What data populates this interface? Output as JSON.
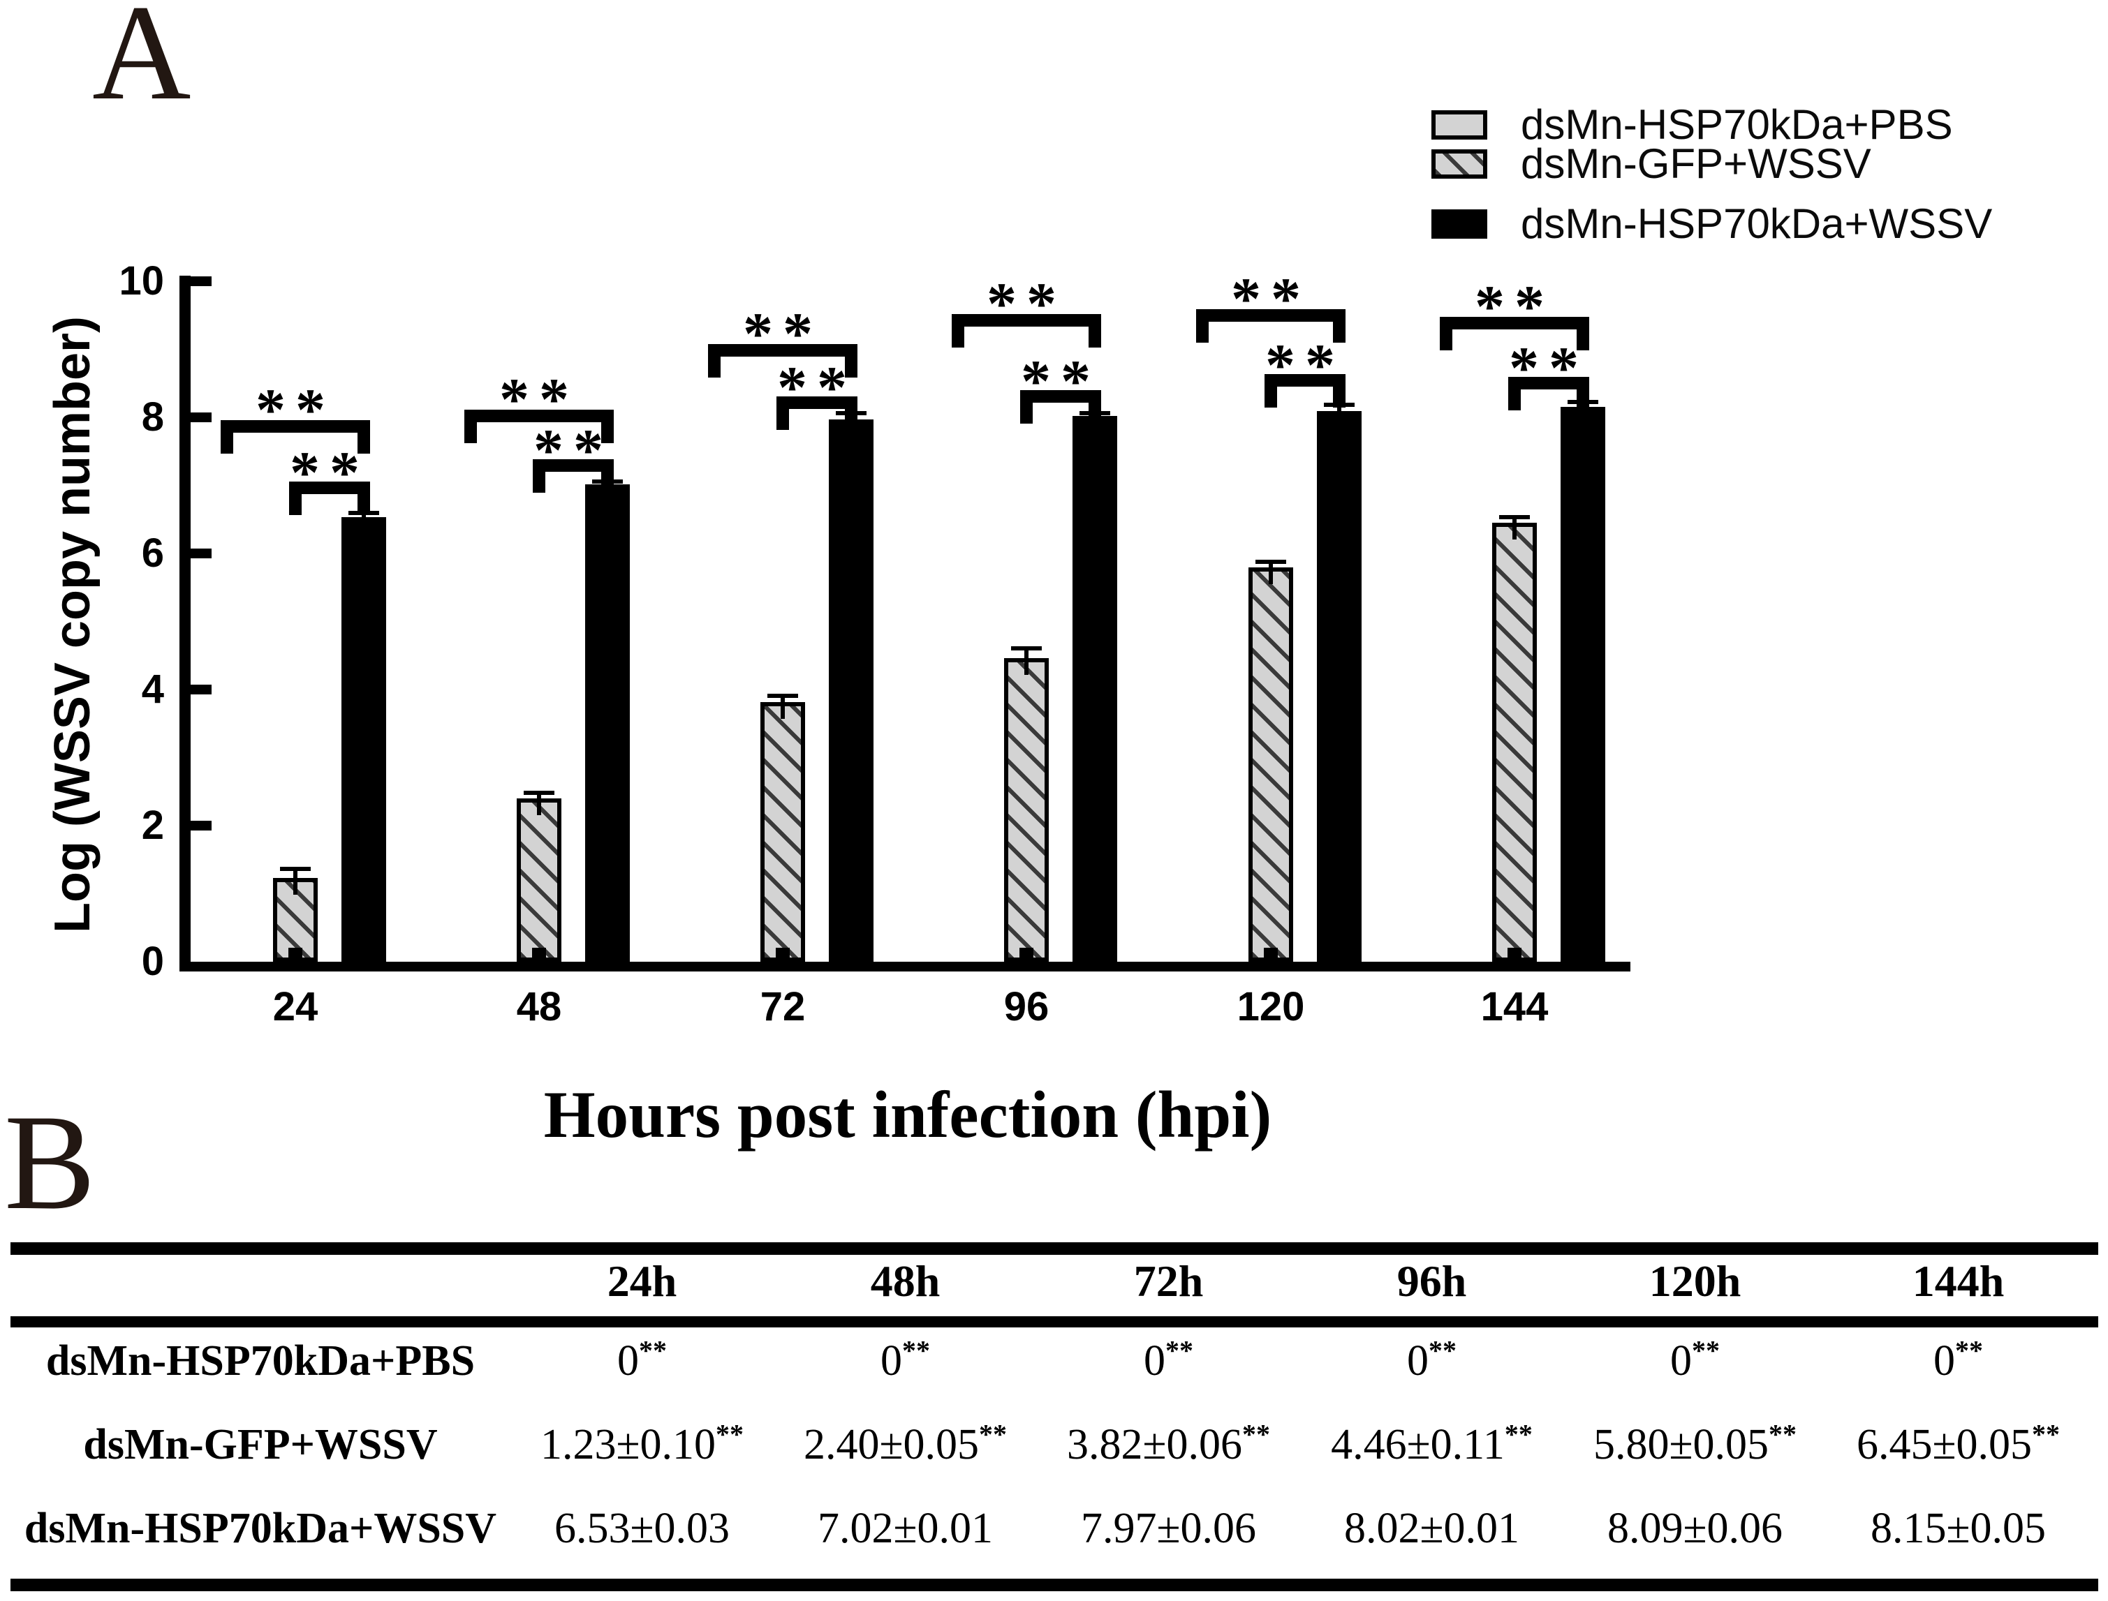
{
  "figure": {
    "panel_a_label": "A",
    "panel_b_label": "B"
  },
  "legend": {
    "items": [
      {
        "label": "dsMn-HSP70kDa+PBS",
        "swatch": "gray-solid"
      },
      {
        "label": "dsMn-GFP+WSSV",
        "swatch": "gray-hatched"
      },
      {
        "label": "dsMn-HSP70kDa+WSSV",
        "swatch": "black-solid"
      }
    ]
  },
  "chart_data": {
    "type": "bar",
    "title": "",
    "xlabel": "Hours post infection (hpi)",
    "ylabel": "Log (WSSV copy number)",
    "ylim": [
      0,
      10
    ],
    "yticks": [
      0,
      2,
      4,
      6,
      8,
      10
    ],
    "grid": false,
    "legend_position": "top-right",
    "categories": [
      "24",
      "48",
      "72",
      "96",
      "120",
      "144"
    ],
    "series": [
      {
        "name": "dsMn-HSP70kDa+PBS",
        "style": "gray-solid",
        "values": [
          0,
          0,
          0,
          0,
          0,
          0
        ],
        "errors": [
          0,
          0,
          0,
          0,
          0,
          0
        ]
      },
      {
        "name": "dsMn-GFP+WSSV",
        "style": "gray-hatched",
        "values": [
          1.23,
          2.4,
          3.82,
          4.46,
          5.8,
          6.45
        ],
        "errors": [
          0.1,
          0.05,
          0.06,
          0.11,
          0.05,
          0.05
        ]
      },
      {
        "name": "dsMn-HSP70kDa+WSSV",
        "style": "black-solid",
        "values": [
          6.53,
          7.02,
          7.97,
          8.02,
          8.09,
          8.15
        ],
        "errors": [
          0.03,
          0.01,
          0.06,
          0.01,
          0.06,
          0.05
        ]
      }
    ],
    "significance": {
      "marker": "**",
      "per_category": [
        {
          "category": "24",
          "outer": "**",
          "inner": "**"
        },
        {
          "category": "48",
          "outer": "**",
          "inner": "**"
        },
        {
          "category": "72",
          "outer": "**",
          "inner": "**"
        },
        {
          "category": "96",
          "outer": "**",
          "inner": "**"
        },
        {
          "category": "120",
          "outer": "**",
          "inner": "**"
        },
        {
          "category": "144",
          "outer": "**",
          "inner": "**"
        }
      ],
      "outer_comparison": "dsMn-HSP70kDa+PBS vs dsMn-HSP70kDa+WSSV",
      "inner_comparison": "dsMn-GFP+WSSV vs dsMn-HSP70kDa+WSSV"
    }
  },
  "table": {
    "columns": [
      "",
      "24h",
      "48h",
      "72h",
      "96h",
      "120h",
      "144h"
    ],
    "rows": [
      {
        "label": "dsMn-HSP70kDa+PBS",
        "cells": [
          {
            "text": "0",
            "sup": "**"
          },
          {
            "text": "0",
            "sup": "**"
          },
          {
            "text": "0",
            "sup": "**"
          },
          {
            "text": "0",
            "sup": "**"
          },
          {
            "text": "0",
            "sup": "**"
          },
          {
            "text": "0",
            "sup": "**"
          }
        ]
      },
      {
        "label": "dsMn-GFP+WSSV",
        "cells": [
          {
            "text": "1.23±0.10",
            "sup": "**"
          },
          {
            "text": "2.40±0.05",
            "sup": "**"
          },
          {
            "text": "3.82±0.06",
            "sup": "**"
          },
          {
            "text": "4.46±0.11",
            "sup": "**"
          },
          {
            "text": "5.80±0.05",
            "sup": "**"
          },
          {
            "text": "6.45±0.05",
            "sup": "**"
          }
        ]
      },
      {
        "label": "dsMn-HSP70kDa+WSSV",
        "cells": [
          {
            "text": "6.53±0.03",
            "sup": ""
          },
          {
            "text": "7.02±0.01",
            "sup": ""
          },
          {
            "text": "7.97±0.06",
            "sup": ""
          },
          {
            "text": "8.02±0.01",
            "sup": ""
          },
          {
            "text": "8.09±0.06",
            "sup": ""
          },
          {
            "text": "8.15±0.05",
            "sup": ""
          }
        ]
      }
    ],
    "colors": {
      "ink": "#000000",
      "hatch_fill": "#d3d3d3",
      "hatch_line": "#3a3a3a"
    }
  }
}
